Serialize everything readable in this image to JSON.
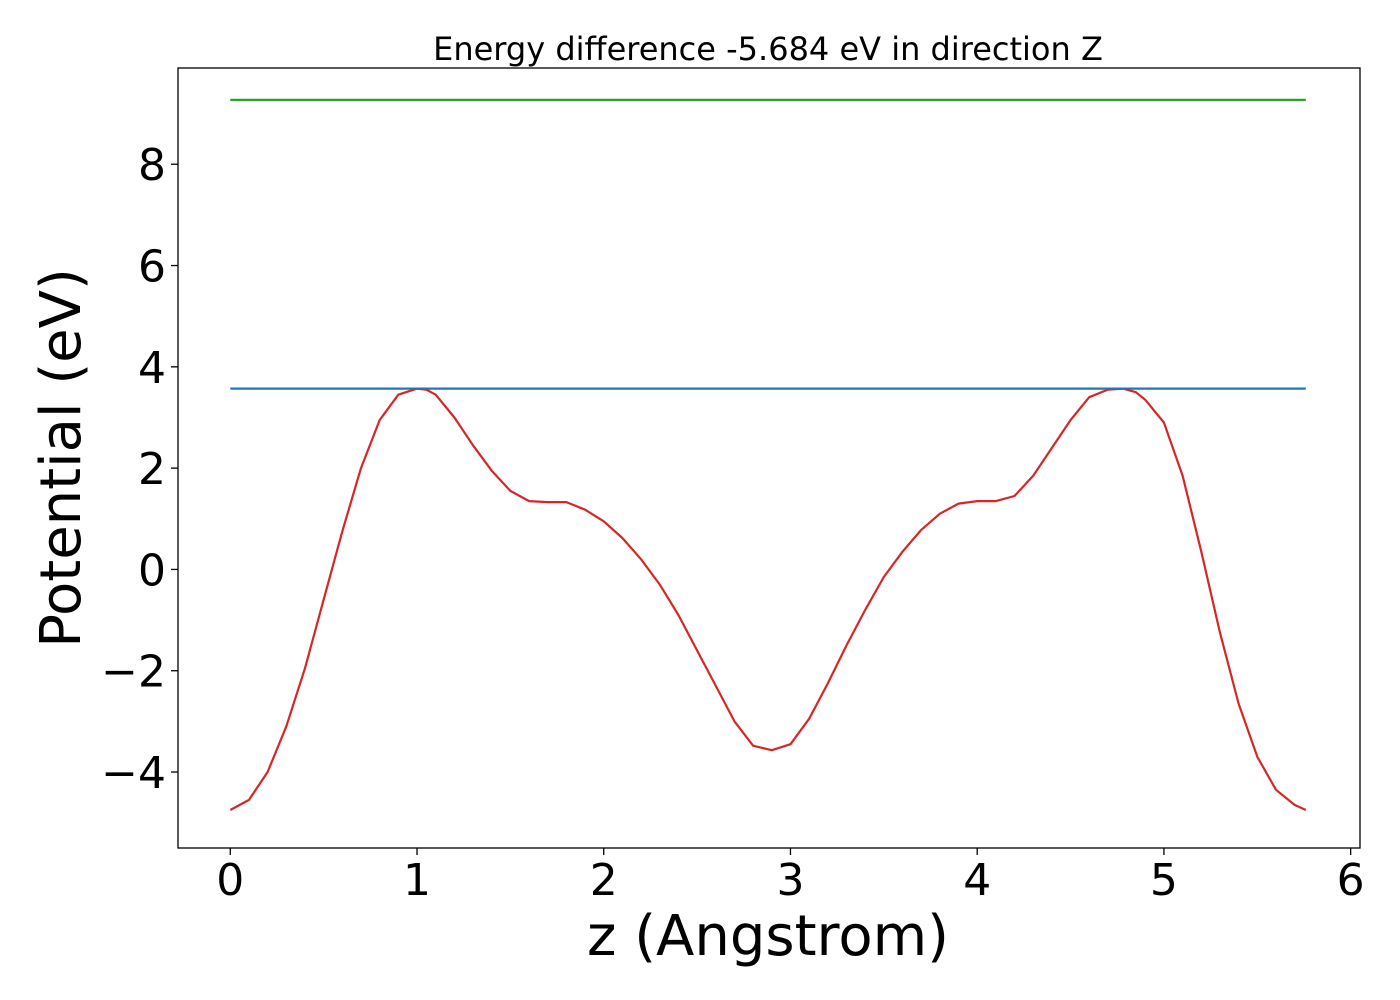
{
  "chart_data": {
    "type": "line",
    "title": "Energy difference -5.684 eV in direction Z",
    "xlabel": "z (Angstrom)",
    "ylabel": "Potential (eV)",
    "xlim": [
      -0.28,
      6.05
    ],
    "ylim": [
      -5.5,
      9.9
    ],
    "xticks": [
      0,
      1,
      2,
      3,
      4,
      5,
      6
    ],
    "yticks": [
      -4,
      -2,
      0,
      2,
      4,
      6,
      8
    ],
    "xtick_labels": [
      "0",
      "1",
      "2",
      "3",
      "4",
      "5",
      "6"
    ],
    "ytick_labels": [
      "−4",
      "−2",
      "0",
      "2",
      "4",
      "6",
      "8"
    ],
    "grid": false,
    "legend": "none",
    "series": [
      {
        "color": "#d62728",
        "x": [
          0.0,
          0.1,
          0.2,
          0.3,
          0.4,
          0.5,
          0.6,
          0.7,
          0.8,
          0.9,
          1.0,
          1.05,
          1.1,
          1.2,
          1.3,
          1.4,
          1.5,
          1.6,
          1.7,
          1.8,
          1.9,
          2.0,
          2.1,
          2.2,
          2.3,
          2.4,
          2.5,
          2.6,
          2.7,
          2.8,
          2.9,
          3.0,
          3.1,
          3.2,
          3.3,
          3.4,
          3.5,
          3.6,
          3.7,
          3.8,
          3.9,
          4.0,
          4.1,
          4.2,
          4.3,
          4.4,
          4.5,
          4.6,
          4.7,
          4.78,
          4.85,
          4.9,
          5.0,
          5.1,
          5.2,
          5.3,
          5.4,
          5.5,
          5.6,
          5.7,
          5.76
        ],
        "y": [
          -4.75,
          -4.55,
          -4.0,
          -3.1,
          -1.95,
          -0.6,
          0.75,
          2.0,
          2.95,
          3.45,
          3.57,
          3.55,
          3.45,
          3.0,
          2.45,
          1.95,
          1.55,
          1.35,
          1.33,
          1.33,
          1.18,
          0.95,
          0.62,
          0.2,
          -0.3,
          -0.9,
          -1.6,
          -2.3,
          -3.0,
          -3.48,
          -3.57,
          -3.45,
          -2.95,
          -2.25,
          -1.5,
          -0.8,
          -0.15,
          0.35,
          0.78,
          1.1,
          1.3,
          1.35,
          1.35,
          1.45,
          1.85,
          2.4,
          2.95,
          3.4,
          3.55,
          3.57,
          3.5,
          3.35,
          2.9,
          1.85,
          0.35,
          -1.25,
          -2.65,
          -3.7,
          -4.35,
          -4.65,
          -4.75
        ]
      },
      {
        "color": "#1f77b4",
        "x": [
          0.0,
          5.76
        ],
        "y": [
          3.57,
          3.57
        ]
      },
      {
        "color": "#2ca02c",
        "x": [
          0.0,
          5.76
        ],
        "y": [
          9.27,
          9.27
        ]
      }
    ]
  }
}
